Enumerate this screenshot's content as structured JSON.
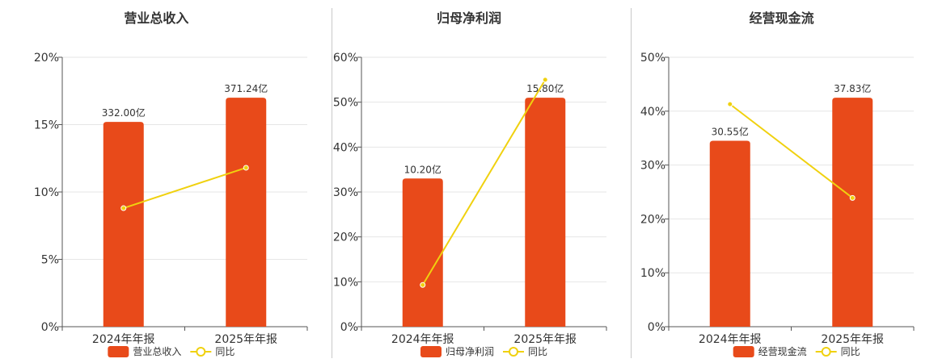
{
  "colors": {
    "bar": "#e84a1a",
    "line": "#f0d10f",
    "grid": "#e6e6e6",
    "axis": "#555555"
  },
  "chart_data": [
    {
      "type": "bar",
      "title": "营业总收入",
      "categories": [
        "2024年年报",
        "2025年年报"
      ],
      "ylim": [
        0,
        20
      ],
      "yticks": [
        "0%",
        "5%",
        "10%",
        "15%",
        "20%"
      ],
      "series": [
        {
          "name": "营业总收入",
          "type": "bar",
          "values": [
            15.2,
            17.0
          ],
          "labels": [
            "332.00亿",
            "371.24亿"
          ]
        },
        {
          "name": "同比",
          "type": "line",
          "values": [
            8.8,
            11.8
          ]
        }
      ],
      "grid": true,
      "legend": "bottom-center"
    },
    {
      "type": "bar",
      "title": "归母净利润",
      "categories": [
        "2024年年报",
        "2025年年报"
      ],
      "ylim": [
        0,
        60
      ],
      "yticks": [
        "0%",
        "10%",
        "20%",
        "30%",
        "40%",
        "50%",
        "60%"
      ],
      "series": [
        {
          "name": "归母净利润",
          "type": "bar",
          "values": [
            33.0,
            51.0
          ],
          "labels": [
            "10.20亿",
            "15.80亿"
          ]
        },
        {
          "name": "同比",
          "type": "line",
          "values": [
            9.3,
            55.0
          ]
        }
      ],
      "grid": true,
      "legend": "bottom-center"
    },
    {
      "type": "bar",
      "title": "经营现金流",
      "categories": [
        "2024年年报",
        "2025年年报"
      ],
      "ylim": [
        0,
        50
      ],
      "yticks": [
        "0%",
        "10%",
        "20%",
        "30%",
        "40%",
        "50%"
      ],
      "series": [
        {
          "name": "经营现金流",
          "type": "bar",
          "values": [
            34.5,
            42.5
          ],
          "labels": [
            "30.55亿",
            "37.83亿"
          ]
        },
        {
          "name": "同比",
          "type": "line",
          "values": [
            41.3,
            23.9
          ]
        }
      ],
      "grid": true,
      "legend": "bottom-center"
    }
  ]
}
